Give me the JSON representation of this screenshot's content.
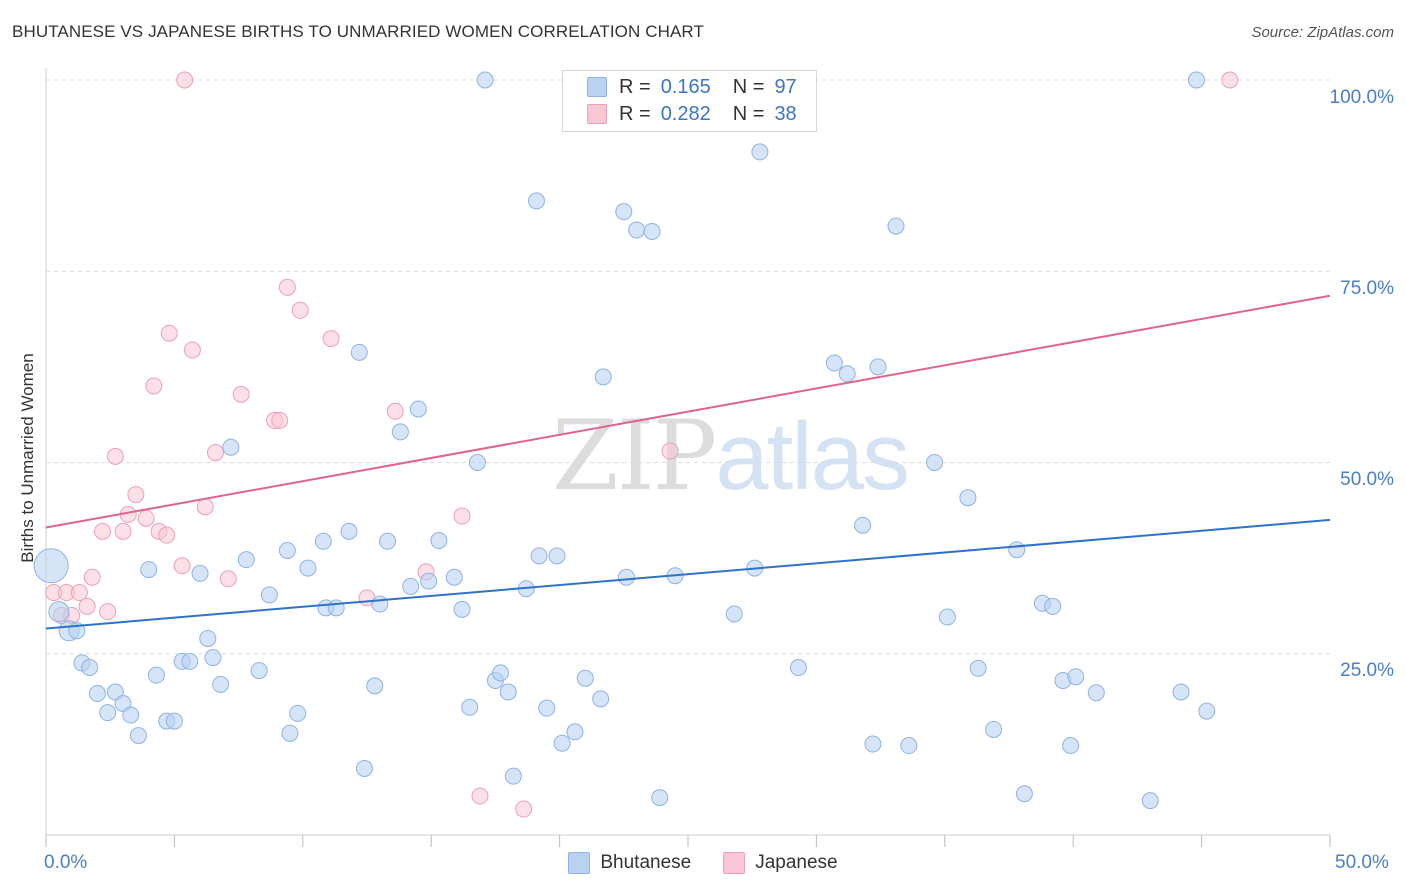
{
  "header": {
    "title": "BHUTANESE VS JAPANESE BIRTHS TO UNMARRIED WOMEN CORRELATION CHART",
    "source": "Source: ZipAtlas.com"
  },
  "watermark": {
    "zip": "ZIP",
    "atlas": "atlas"
  },
  "colors": {
    "bhutanese_fill": "#b9d2f2",
    "bhutanese_stroke": "#8fb3e3",
    "bhutanese_line": "#2f72c9",
    "japanese_fill": "#f8c6d4",
    "japanese_stroke": "#ee9fb6",
    "japanese_line": "#e0648c",
    "tick_text": "#4a7ec9",
    "grid": "#dddddd"
  },
  "legend": {
    "rows": [
      {
        "r_label": "R =",
        "r_value": "0.165",
        "n_label": "N =",
        "n_value": "97"
      },
      {
        "r_label": "R =",
        "r_value": "0.282",
        "n_label": "N =",
        "n_value": "38"
      }
    ]
  },
  "bottom_legend": {
    "items": [
      "Bhutanese",
      "Japanese"
    ]
  },
  "chart_data": {
    "type": "scatter",
    "title": "BHUTANESE VS JAPANESE BIRTHS TO UNMARRIED WOMEN CORRELATION CHART",
    "xlabel": "",
    "ylabel": "Births to Unmarried Women",
    "xlim": [
      0,
      50
    ],
    "ylim": [
      0,
      102
    ],
    "x_tick_labels": [
      "0.0%",
      "50.0%"
    ],
    "y_tick_labels": [
      "100.0%",
      "75.0%",
      "50.0%",
      "25.0%"
    ],
    "y_ticks": [
      100,
      75,
      50,
      25
    ],
    "grid": true,
    "legend_position": "top-center",
    "series": [
      {
        "name": "Bhutanese",
        "r": 0.165,
        "n": 97,
        "trend": {
          "x": [
            0,
            50
          ],
          "y": [
            28.3,
            42.5
          ]
        },
        "points": [
          [
            0.2,
            36.5
          ],
          [
            0.5,
            30.5
          ],
          [
            0.9,
            28
          ],
          [
            1.2,
            28
          ],
          [
            1.4,
            23.8
          ],
          [
            1.7,
            23.2
          ],
          [
            2.0,
            19.8
          ],
          [
            2.4,
            17.3
          ],
          [
            2.7,
            20
          ],
          [
            3.0,
            18.5
          ],
          [
            3.3,
            17
          ],
          [
            3.6,
            14.3
          ],
          [
            4.0,
            36
          ],
          [
            4.3,
            22.2
          ],
          [
            4.7,
            16.2
          ],
          [
            5.0,
            16.2
          ],
          [
            5.3,
            24
          ],
          [
            5.6,
            24
          ],
          [
            6.0,
            35.5
          ],
          [
            6.3,
            27
          ],
          [
            6.5,
            24.5
          ],
          [
            6.8,
            21
          ],
          [
            7.2,
            52
          ],
          [
            7.8,
            37.3
          ],
          [
            8.3,
            22.8
          ],
          [
            8.7,
            32.7
          ],
          [
            9.4,
            38.5
          ],
          [
            9.5,
            14.6
          ],
          [
            9.8,
            17.2
          ],
          [
            10.2,
            36.2
          ],
          [
            10.8,
            39.7
          ],
          [
            10.9,
            31
          ],
          [
            11.3,
            31
          ],
          [
            11.8,
            41
          ],
          [
            12.2,
            64.4
          ],
          [
            12.4,
            10
          ],
          [
            12.8,
            20.8
          ],
          [
            13.0,
            31.5
          ],
          [
            13.3,
            39.7
          ],
          [
            13.8,
            54
          ],
          [
            14.2,
            33.8
          ],
          [
            14.5,
            57
          ],
          [
            14.9,
            34.5
          ],
          [
            15.3,
            39.8
          ],
          [
            15.9,
            35
          ],
          [
            16.2,
            30.8
          ],
          [
            16.5,
            18
          ],
          [
            16.8,
            50
          ],
          [
            17.1,
            100
          ],
          [
            17.5,
            21.5
          ],
          [
            17.7,
            22.5
          ],
          [
            18.0,
            20
          ],
          [
            18.2,
            9
          ],
          [
            18.7,
            33.5
          ],
          [
            19.1,
            84.2
          ],
          [
            19.2,
            37.8
          ],
          [
            19.5,
            17.9
          ],
          [
            19.9,
            37.8
          ],
          [
            20.1,
            13.3
          ],
          [
            20.6,
            14.8
          ],
          [
            21.0,
            21.8
          ],
          [
            21.6,
            19.1
          ],
          [
            21.7,
            61.2
          ],
          [
            22.5,
            82.8
          ],
          [
            22.6,
            35
          ],
          [
            23.0,
            80.4
          ],
          [
            23.6,
            80.2
          ],
          [
            23.9,
            6.2
          ],
          [
            24.5,
            35.2
          ],
          [
            26.8,
            30.2
          ],
          [
            27.6,
            36.2
          ],
          [
            27.8,
            90.6
          ],
          [
            29.3,
            23.2
          ],
          [
            30.7,
            63
          ],
          [
            31.2,
            61.6
          ],
          [
            31.8,
            41.8
          ],
          [
            32.2,
            13.2
          ],
          [
            32.4,
            62.5
          ],
          [
            33.1,
            80.9
          ],
          [
            33.6,
            13
          ],
          [
            34.6,
            50
          ],
          [
            35.1,
            29.8
          ],
          [
            35.9,
            45.4
          ],
          [
            36.3,
            23.1
          ],
          [
            36.9,
            15.1
          ],
          [
            37.8,
            38.6
          ],
          [
            38.1,
            6.7
          ],
          [
            38.8,
            31.6
          ],
          [
            39.2,
            31.2
          ],
          [
            39.6,
            21.5
          ],
          [
            39.9,
            13
          ],
          [
            40.1,
            22
          ],
          [
            40.9,
            19.9
          ],
          [
            43.0,
            5.8
          ],
          [
            44.2,
            20
          ],
          [
            44.8,
            100
          ],
          [
            45.2,
            17.5
          ]
        ]
      },
      {
        "name": "Japanese",
        "r": 0.282,
        "n": 38,
        "trend": {
          "x": [
            0,
            50
          ],
          "y": [
            41.5,
            71.8
          ]
        },
        "points": [
          [
            0.3,
            33
          ],
          [
            0.6,
            30
          ],
          [
            0.8,
            33
          ],
          [
            1.0,
            30
          ],
          [
            1.3,
            33
          ],
          [
            1.6,
            31.2
          ],
          [
            1.8,
            35
          ],
          [
            2.2,
            41
          ],
          [
            2.4,
            30.5
          ],
          [
            2.7,
            50.8
          ],
          [
            3.0,
            41
          ],
          [
            3.2,
            43.2
          ],
          [
            3.5,
            45.8
          ],
          [
            3.9,
            42.7
          ],
          [
            4.2,
            60
          ],
          [
            4.4,
            41
          ],
          [
            4.7,
            40.5
          ],
          [
            4.8,
            66.9
          ],
          [
            5.3,
            36.5
          ],
          [
            5.4,
            100
          ],
          [
            5.7,
            64.7
          ],
          [
            6.2,
            44.2
          ],
          [
            6.6,
            51.3
          ],
          [
            7.1,
            34.8
          ],
          [
            7.6,
            58.9
          ],
          [
            8.9,
            55.5
          ],
          [
            9.1,
            55.5
          ],
          [
            9.4,
            72.9
          ],
          [
            9.9,
            69.9
          ],
          [
            11.1,
            66.2
          ],
          [
            12.5,
            32.3
          ],
          [
            13.6,
            56.7
          ],
          [
            14.8,
            35.7
          ],
          [
            16.2,
            43
          ],
          [
            16.9,
            6.4
          ],
          [
            18.6,
            4.7
          ],
          [
            24.3,
            51.5
          ],
          [
            46.1,
            100
          ]
        ]
      }
    ]
  }
}
